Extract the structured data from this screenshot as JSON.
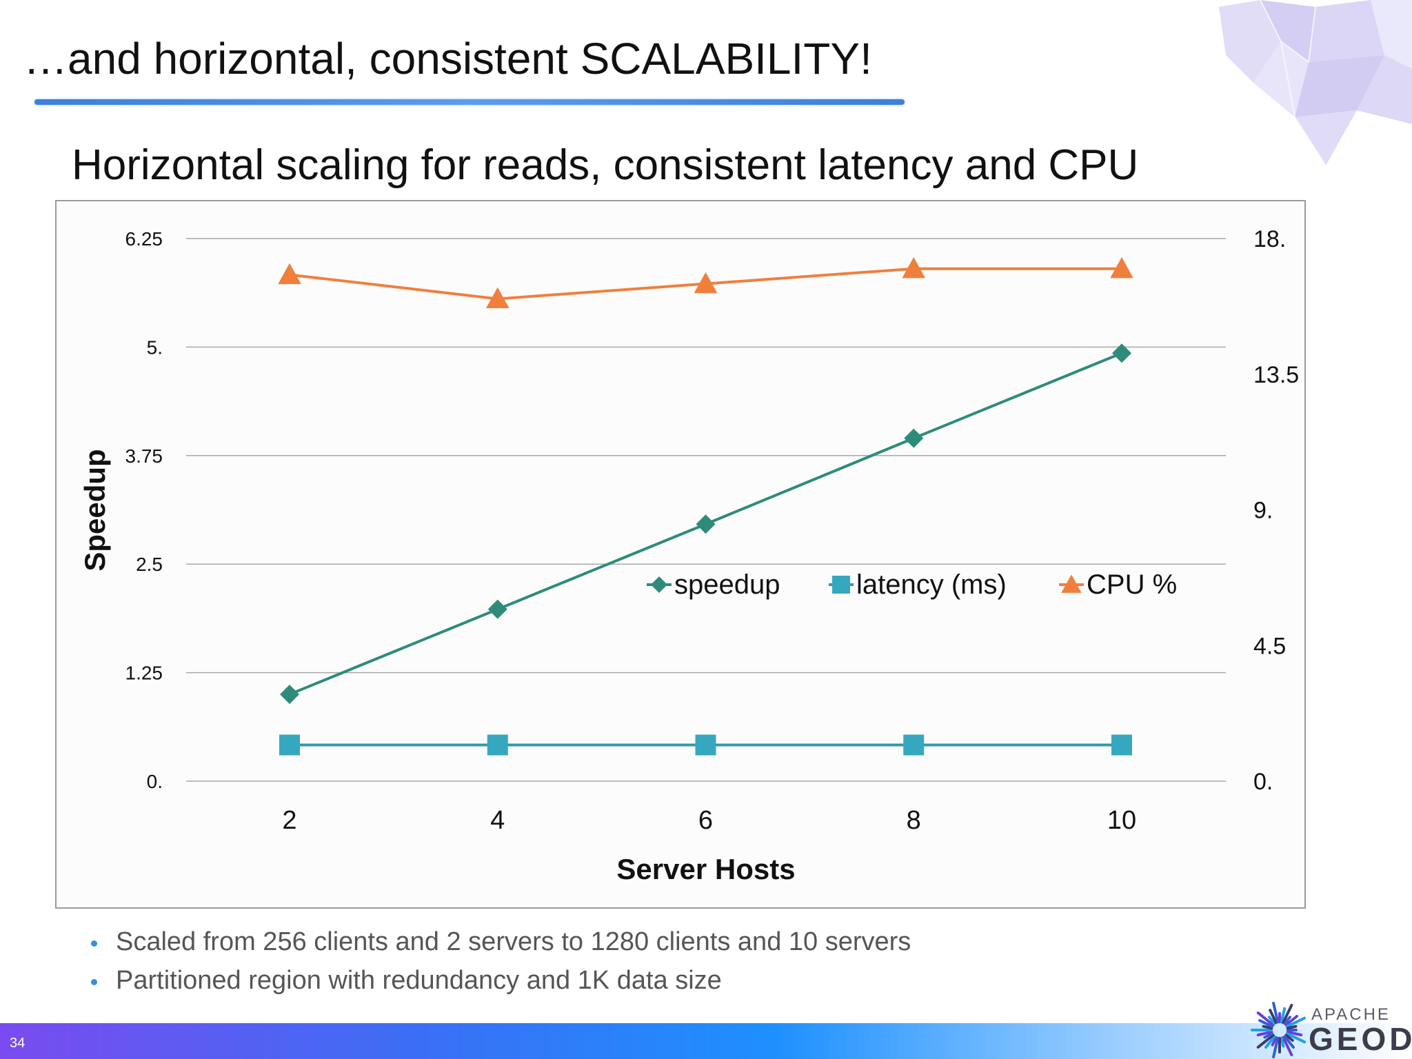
{
  "slide": {
    "title": "…and horizontal, consistent SCALABILITY!",
    "page_number": "34",
    "bullets": [
      "Scaled from 256 clients and 2 servers to 1280 clients and 10 servers",
      "Partitioned region with redundancy and 1K data size"
    ],
    "logo": {
      "top": "APACHE",
      "bottom": "GEODE"
    }
  },
  "chart_data": {
    "type": "line",
    "title": "Horizontal scaling for reads, consistent latency and CPU",
    "x": [
      2,
      4,
      6,
      8,
      10
    ],
    "x_tick_labels": [
      "2",
      "4",
      "6",
      "8",
      "10"
    ],
    "xlabel": "Server Hosts",
    "ylabel": "Speedup",
    "ylim": [
      0,
      6.25
    ],
    "y_ticks": [
      "0.",
      "1.25",
      "2.5",
      "3.75",
      "5.",
      "6.25"
    ],
    "y2lim": [
      0,
      18
    ],
    "y2_ticks": [
      "0.",
      "4.5",
      "9.",
      "13.5",
      "18."
    ],
    "grid": true,
    "legend_position": "center-right",
    "series": [
      {
        "name": "speedup",
        "axis": "left",
        "marker": "diamond",
        "color": "#2e8b7a",
        "values": [
          1.0,
          1.98,
          2.96,
          3.95,
          4.93
        ]
      },
      {
        "name": "latency (ms)",
        "axis": "right",
        "marker": "square",
        "color": "#35a8c0",
        "line_color": "#2e9aaa",
        "values": [
          1.2,
          1.2,
          1.2,
          1.2,
          1.2
        ]
      },
      {
        "name": "CPU %",
        "axis": "right",
        "marker": "triangle",
        "color": "#f07f3c",
        "values": [
          16.8,
          16.0,
          16.5,
          17.0,
          17.0
        ]
      }
    ]
  }
}
